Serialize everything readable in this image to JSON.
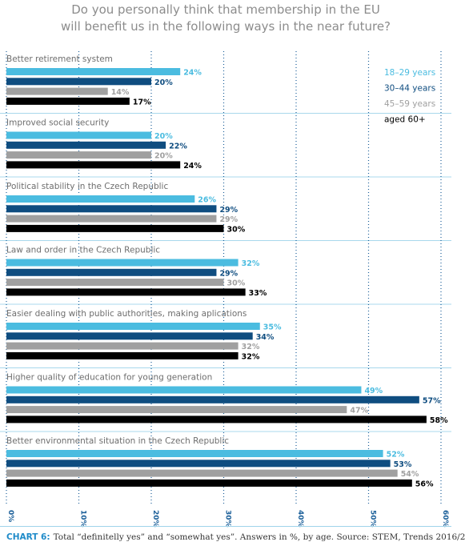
{
  "chart_data": {
    "type": "bar",
    "orientation": "horizontal",
    "title": [
      "Do you personally think that membership in the EU",
      "will benefit us in the following ways in the near future?"
    ],
    "categories": [
      "Better retirement system",
      "Improved social security",
      "Political stability in the Czech Republic",
      "Law and order in the Czech Republic",
      "Easier dealing with public authorities, making aplications",
      "Higher quality of education for young generation",
      "Better environmental situation in the Czech Republic"
    ],
    "series": [
      {
        "name": "18–29 years",
        "color": "#4bbce0",
        "values": [
          24,
          20,
          26,
          32,
          35,
          49,
          52
        ]
      },
      {
        "name": "30–44 years",
        "color": "#0f4d80",
        "values": [
          20,
          22,
          29,
          29,
          34,
          57,
          53
        ]
      },
      {
        "name": "45–59 years",
        "color": "#a0a0a0",
        "values": [
          14,
          20,
          29,
          30,
          32,
          47,
          54
        ]
      },
      {
        "name": "aged 60+",
        "color": "#000000",
        "values": [
          17,
          24,
          30,
          33,
          32,
          58,
          56
        ]
      }
    ],
    "xlim": [
      0,
      60
    ],
    "ticks": [
      0,
      10,
      20,
      30,
      40,
      50,
      60
    ],
    "tick_labels": [
      "0%",
      "10%",
      "20%",
      "30%",
      "40%",
      "50%",
      "60%"
    ],
    "value_suffix": "%",
    "legend_position": "top-right",
    "grid": "dotted-vertical"
  },
  "footer": {
    "label": "CHART 6:",
    "text": "Total “definitelly yes” and “somewhat yes”. Answers in %, by age. Source: STEM, Trends 2016/2"
  }
}
